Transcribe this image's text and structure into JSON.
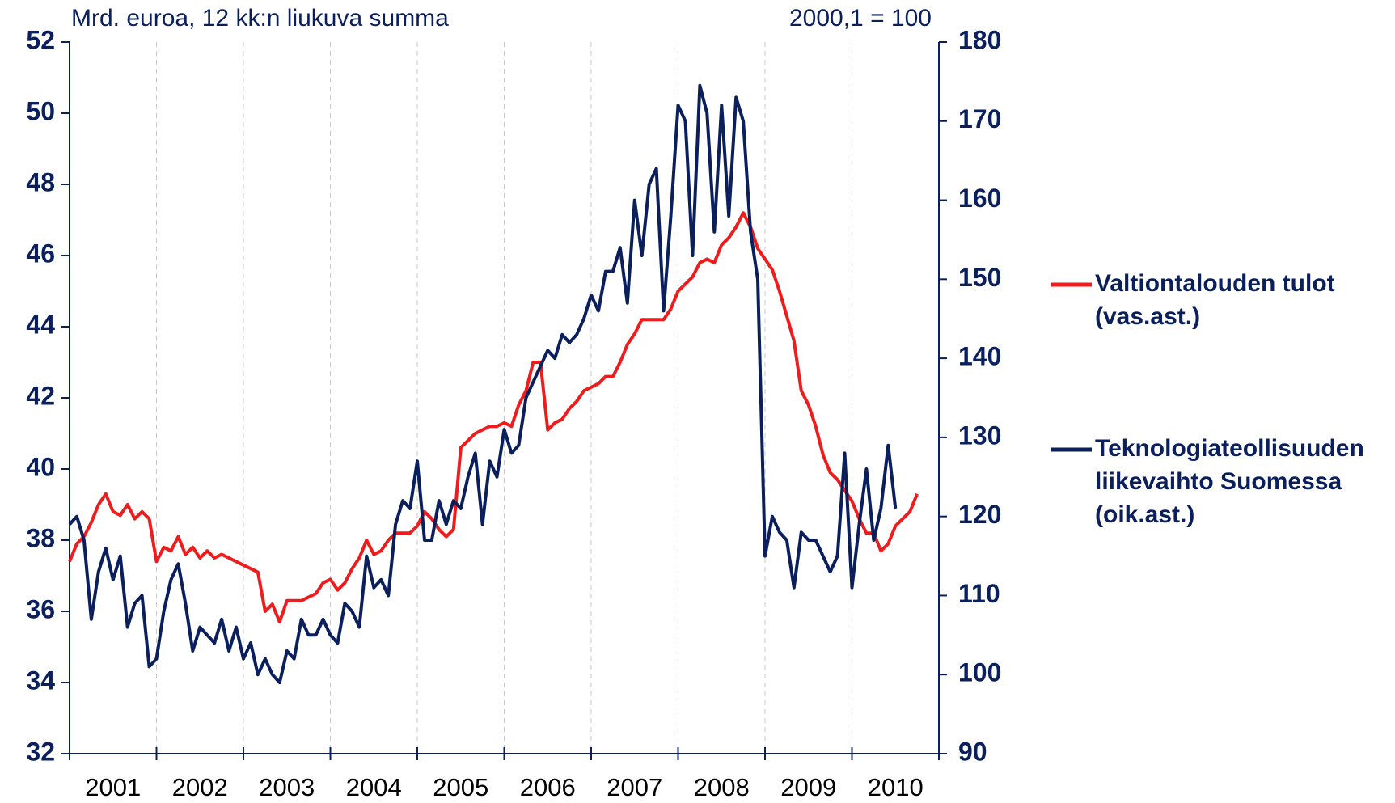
{
  "chart_data": {
    "type": "line",
    "subtitle_left": "Mrd. euroa, 12 kk:n liukuva summa",
    "subtitle_right": "2000,1 = 100",
    "categories": [
      null,
      null,
      null,
      null,
      null,
      null,
      "2001",
      null,
      null,
      null,
      null,
      null,
      null,
      null,
      null,
      null,
      null,
      null,
      "2002",
      null,
      null,
      null,
      null,
      null,
      null,
      null,
      null,
      null,
      null,
      null,
      "2003",
      null,
      null,
      null,
      null,
      null,
      null,
      null,
      null,
      null,
      null,
      null,
      "2004",
      null,
      null,
      null,
      null,
      null,
      null,
      null,
      null,
      null,
      null,
      null,
      "2005",
      null,
      null,
      null,
      null,
      null,
      null,
      null,
      null,
      null,
      null,
      null,
      "2006",
      null,
      null,
      null,
      null,
      null,
      null,
      null,
      null,
      null,
      null,
      null,
      "2007",
      null,
      null,
      null,
      null,
      null,
      null,
      null,
      null,
      null,
      null,
      null,
      "2008",
      null,
      null,
      null,
      null,
      null,
      null,
      null,
      null,
      null,
      null,
      null,
      "2009",
      null,
      null,
      null,
      null,
      null,
      null,
      null,
      null,
      null,
      null,
      null,
      "2010",
      null,
      null,
      null,
      null,
      null
    ],
    "series": [
      {
        "name": "Valtiontalouden tulot\n(vas.ast.)",
        "color": "#ee1c1c",
        "axis": "y",
        "values": [
          37.4,
          37.9,
          38.1,
          38.5,
          39.0,
          39.3,
          38.8,
          38.7,
          39.0,
          38.6,
          38.8,
          38.6,
          37.4,
          37.8,
          37.7,
          38.1,
          37.6,
          37.8,
          37.5,
          37.7,
          37.5,
          37.6,
          37.5,
          37.4,
          37.3,
          37.2,
          37.1,
          36.0,
          36.2,
          35.7,
          36.3,
          36.3,
          36.3,
          36.4,
          36.5,
          36.8,
          36.9,
          36.6,
          36.8,
          37.2,
          37.5,
          38.0,
          37.6,
          37.7,
          38.0,
          38.2,
          38.2,
          38.2,
          38.4,
          38.8,
          38.6,
          38.3,
          38.1,
          38.3,
          40.6,
          40.8,
          41.0,
          41.1,
          41.2,
          41.2,
          41.3,
          41.2,
          41.8,
          42.2,
          43.0,
          43.0,
          41.1,
          41.3,
          41.4,
          41.7,
          41.9,
          42.2,
          42.3,
          42.4,
          42.6,
          42.6,
          43.0,
          43.5,
          43.8,
          44.2,
          44.2,
          44.2,
          44.2,
          44.5,
          45.0,
          45.2,
          45.4,
          45.8,
          45.9,
          45.8,
          46.3,
          46.5,
          46.8,
          47.2,
          46.8,
          46.2,
          45.9,
          45.6,
          45.0,
          44.3,
          43.6,
          42.2,
          41.8,
          41.2,
          40.4,
          39.9,
          39.7,
          39.4,
          39.1,
          38.6,
          38.2,
          38.2,
          37.7,
          37.9,
          38.4,
          38.6,
          38.8,
          39.3,
          null,
          null
        ]
      },
      {
        "name": "Teknologiateollisuuden\nliikevaihto Suomessa\n(oik.ast.)",
        "color": "#0a1f5c",
        "axis": "y2",
        "values": [
          119,
          120,
          117,
          107,
          113,
          116,
          112,
          115,
          106,
          109,
          110,
          101,
          102,
          108,
          112,
          114,
          109,
          103,
          106,
          105,
          104,
          107,
          103,
          106,
          102,
          104,
          100,
          102,
          100,
          99,
          103,
          102,
          107,
          105,
          105,
          107,
          105,
          104,
          109,
          108,
          106,
          115,
          111,
          112,
          110,
          119,
          122,
          121,
          127,
          117,
          117,
          122,
          119,
          122,
          121,
          125,
          128,
          119,
          127,
          125,
          131,
          128,
          129,
          135,
          137,
          139,
          141,
          140,
          143,
          142,
          143,
          145,
          148,
          146,
          151,
          151,
          154,
          147,
          160,
          153,
          162,
          164,
          146,
          158,
          172,
          170,
          153,
          174.5,
          171,
          156,
          172,
          158,
          173,
          170,
          156,
          150,
          115,
          120,
          118,
          117,
          111,
          118,
          117,
          117,
          115,
          113,
          115,
          128,
          111,
          119,
          126,
          117,
          121,
          129,
          121,
          null,
          null,
          null,
          null,
          null
        ]
      }
    ],
    "ylim": [
      32,
      52
    ],
    "yticks": [
      32,
      34,
      36,
      38,
      40,
      42,
      44,
      46,
      48,
      50,
      52
    ],
    "y2lim": [
      90,
      180
    ],
    "y2ticks": [
      90,
      100,
      110,
      120,
      130,
      140,
      150,
      160,
      170,
      180
    ],
    "grid": true,
    "legend": "right"
  }
}
